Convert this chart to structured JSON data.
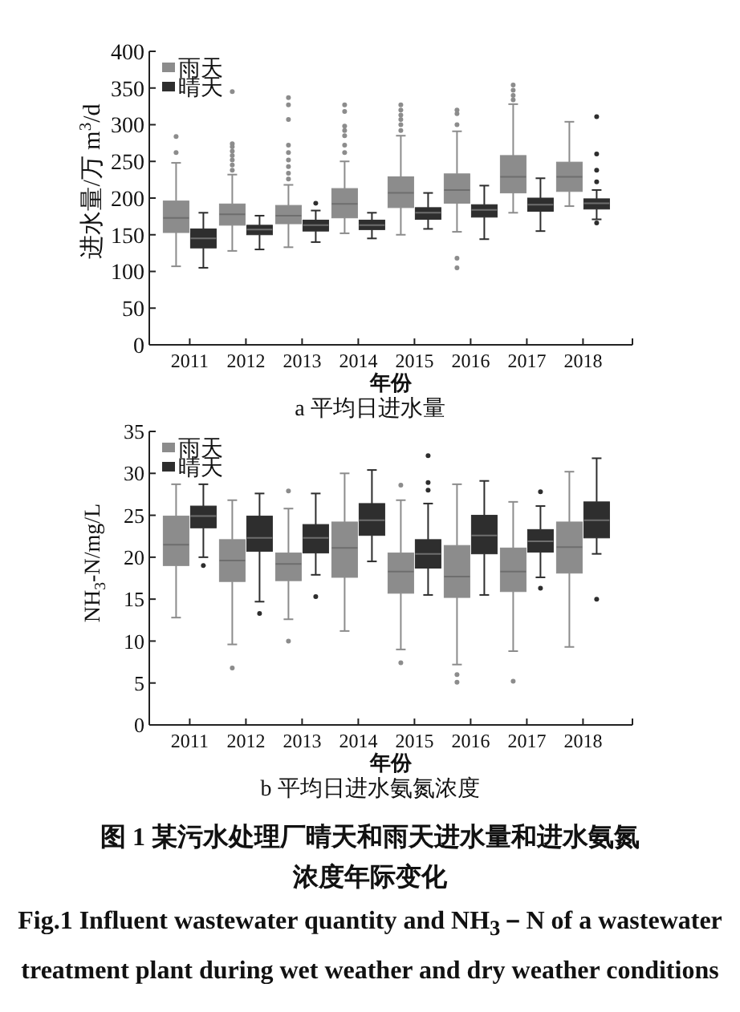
{
  "chart_data": [
    {
      "type": "box",
      "title": "a 平均日进水量",
      "xlabel": "年份",
      "ylabel": "进水量/万 m$^{3}$/d",
      "categories": [
        "2011",
        "2012",
        "2013",
        "2014",
        "2015",
        "2016",
        "2017",
        "2018"
      ],
      "ylim": [
        0,
        400
      ],
      "yticks": [
        0,
        50,
        100,
        150,
        200,
        250,
        300,
        350,
        400
      ],
      "legend": "top left",
      "series": [
        {
          "name": "雨天",
          "color": "#8c8c8c",
          "boxes": [
            {
              "low": 107,
              "q1": 153,
              "median": 173,
              "q3": 196,
              "high": 248,
              "outliers": [
                262,
                284
              ]
            },
            {
              "low": 128,
              "q1": 163,
              "median": 178,
              "q3": 192,
              "high": 232,
              "outliers": [
                238,
                245,
                252,
                258,
                264,
                270,
                274,
                345
              ]
            },
            {
              "low": 133,
              "q1": 165,
              "median": 176,
              "q3": 190,
              "high": 218,
              "outliers": [
                226,
                234,
                243,
                252,
                262,
                272,
                307,
                327,
                337
              ]
            },
            {
              "low": 152,
              "q1": 173,
              "median": 192,
              "q3": 213,
              "high": 250,
              "outliers": [
                262,
                272,
                285,
                292,
                298,
                318,
                327
              ]
            },
            {
              "low": 150,
              "q1": 187,
              "median": 207,
              "q3": 229,
              "high": 285,
              "outliers": [
                292,
                300,
                307,
                313,
                320,
                327
              ]
            },
            {
              "low": 154,
              "q1": 193,
              "median": 211,
              "q3": 233,
              "high": 291,
              "outliers": [
                300,
                315,
                320,
                105,
                118
              ]
            },
            {
              "low": 180,
              "q1": 207,
              "median": 229,
              "q3": 258,
              "high": 328,
              "outliers": [
                334,
                340,
                347,
                354
              ]
            },
            {
              "low": 189,
              "q1": 209,
              "median": 229,
              "q3": 249,
              "high": 304
            }
          ]
        },
        {
          "name": "晴天",
          "color": "#2e2e2e",
          "boxes": [
            {
              "low": 105,
              "q1": 132,
              "median": 145,
              "q3": 158,
              "high": 180
            },
            {
              "low": 130,
              "q1": 150,
              "median": 157,
              "q3": 163,
              "high": 176
            },
            {
              "low": 140,
              "q1": 155,
              "median": 163,
              "q3": 170,
              "high": 183,
              "outliers": [
                193
              ]
            },
            {
              "low": 145,
              "q1": 157,
              "median": 163,
              "q3": 170,
              "high": 180
            },
            {
              "low": 158,
              "q1": 171,
              "median": 180,
              "q3": 187,
              "high": 207
            },
            {
              "low": 144,
              "q1": 174,
              "median": 184,
              "q3": 191,
              "high": 217
            },
            {
              "low": 155,
              "q1": 182,
              "median": 191,
              "q3": 200,
              "high": 227
            },
            {
              "low": 171,
              "q1": 185,
              "median": 193,
              "q3": 199,
              "high": 211,
              "outliers": [
                222,
                238,
                260,
                311,
                166
              ]
            }
          ]
        }
      ]
    },
    {
      "type": "box",
      "title": "b 平均日进水氨氮浓度",
      "xlabel": "年份",
      "ylabel": "NH$_{3}$-N/mg/L",
      "categories": [
        "2011",
        "2012",
        "2013",
        "2014",
        "2015",
        "2016",
        "2017",
        "2018"
      ],
      "ylim": [
        0,
        35
      ],
      "yticks": [
        0,
        5,
        10,
        15,
        20,
        25,
        30,
        35
      ],
      "legend": "top left",
      "series": [
        {
          "name": "雨天",
          "color": "#8c8c8c",
          "boxes": [
            {
              "low": 12.8,
              "q1": 19.0,
              "median": 21.5,
              "q3": 24.9,
              "high": 28.7
            },
            {
              "low": 9.6,
              "q1": 17.1,
              "median": 19.6,
              "q3": 22.1,
              "high": 26.8,
              "outliers": [
                6.8
              ]
            },
            {
              "low": 12.6,
              "q1": 17.2,
              "median": 19.2,
              "q3": 20.5,
              "high": 25.8,
              "outliers": [
                27.9,
                10.0
              ]
            },
            {
              "low": 11.2,
              "q1": 17.6,
              "median": 21.1,
              "q3": 24.2,
              "high": 30.0
            },
            {
              "low": 9.0,
              "q1": 15.7,
              "median": 18.3,
              "q3": 20.5,
              "high": 26.8,
              "outliers": [
                28.6,
                7.4
              ]
            },
            {
              "low": 7.2,
              "q1": 15.2,
              "median": 17.7,
              "q3": 21.4,
              "high": 28.7,
              "outliers": [
                6.0,
                5.1
              ]
            },
            {
              "low": 8.8,
              "q1": 15.9,
              "median": 18.3,
              "q3": 21.1,
              "high": 26.6,
              "outliers": [
                5.2
              ]
            },
            {
              "low": 9.3,
              "q1": 18.1,
              "median": 21.2,
              "q3": 24.2,
              "high": 30.2
            }
          ]
        },
        {
          "name": "晴天",
          "color": "#2e2e2e",
          "boxes": [
            {
              "low": 20.0,
              "q1": 23.5,
              "median": 24.9,
              "q3": 26.1,
              "high": 28.7,
              "outliers": [
                19.0
              ]
            },
            {
              "low": 14.7,
              "q1": 20.7,
              "median": 22.3,
              "q3": 24.9,
              "high": 27.6,
              "outliers": [
                13.3
              ]
            },
            {
              "low": 17.9,
              "q1": 20.5,
              "median": 22.3,
              "q3": 23.9,
              "high": 27.6,
              "outliers": [
                15.3
              ]
            },
            {
              "low": 19.5,
              "q1": 22.6,
              "median": 24.4,
              "q3": 26.4,
              "high": 30.4
            },
            {
              "low": 15.5,
              "q1": 18.7,
              "median": 20.4,
              "q3": 22.1,
              "high": 26.4,
              "outliers": [
                28.0,
                28.9,
                32.1
              ]
            },
            {
              "low": 15.5,
              "q1": 20.4,
              "median": 22.6,
              "q3": 25.0,
              "high": 29.1
            },
            {
              "low": 17.6,
              "q1": 20.6,
              "median": 21.9,
              "q3": 23.3,
              "high": 26.1,
              "outliers": [
                27.8,
                16.3
              ]
            },
            {
              "low": 20.4,
              "q1": 22.3,
              "median": 24.4,
              "q3": 26.6,
              "high": 31.8,
              "outliers": [
                15.0
              ]
            }
          ]
        }
      ],
      "annotations": [
        "图 1 某污水处理厂晴天和雨天进水量和进水氨氮浓度年际变化",
        "Fig.1 Influent wastewater quantity and NH$_{3}$－N of a wastewater treatment plant during wet weather and dry weather conditions"
      ]
    }
  ]
}
